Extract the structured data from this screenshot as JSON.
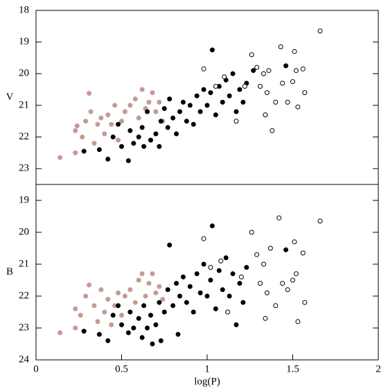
{
  "chart_data": [
    {
      "type": "scatter",
      "ylabel": "V",
      "xlim": [
        0,
        2
      ],
      "ylim": [
        18,
        23.5
      ],
      "invert_y": true,
      "yticks": [
        18,
        19,
        20,
        21,
        22,
        23
      ],
      "series": [
        {
          "color": "#c49a92",
          "filled": true,
          "x": [
            0.14,
            0.23,
            0.23,
            0.24,
            0.27,
            0.29,
            0.31,
            0.32,
            0.34,
            0.36,
            0.38,
            0.4,
            0.42,
            0.44,
            0.46,
            0.48,
            0.5,
            0.52,
            0.55,
            0.58,
            0.6,
            0.62,
            0.64,
            0.66,
            0.68,
            0.7,
            0.72,
            0.74
          ],
          "values": [
            22.65,
            22.5,
            21.8,
            21.65,
            22.0,
            21.5,
            20.62,
            21.2,
            22.2,
            21.6,
            21.4,
            21.9,
            21.3,
            21.6,
            21.0,
            22.1,
            21.5,
            21.2,
            21.0,
            20.8,
            21.4,
            20.5,
            21.1,
            20.9,
            20.6,
            21.2,
            20.9,
            21.5
          ]
        },
        {
          "color": "#000000",
          "filled": true,
          "x": [
            0.28,
            0.37,
            0.42,
            0.45,
            0.48,
            0.5,
            0.54,
            0.55,
            0.57,
            0.6,
            0.62,
            0.63,
            0.65,
            0.67,
            0.7,
            0.72,
            0.73,
            0.75,
            0.77,
            0.78,
            0.8,
            0.82,
            0.84,
            0.86,
            0.88,
            0.9,
            0.92,
            0.94,
            0.96,
            0.98,
            1.0,
            1.02,
            1.03,
            1.05,
            1.07,
            1.09,
            1.11,
            1.13,
            1.15,
            1.17,
            1.19,
            1.21,
            1.23,
            1.27,
            1.46
          ],
          "values": [
            22.45,
            22.4,
            22.7,
            22.0,
            21.6,
            22.3,
            22.75,
            21.8,
            22.2,
            22.0,
            21.7,
            22.3,
            21.2,
            22.1,
            21.9,
            22.3,
            21.5,
            21.1,
            21.7,
            20.8,
            21.4,
            21.9,
            21.2,
            20.9,
            21.5,
            21.0,
            21.6,
            20.7,
            21.2,
            20.5,
            21.0,
            20.6,
            19.25,
            21.3,
            20.4,
            20.9,
            20.2,
            20.7,
            20.0,
            21.2,
            20.5,
            20.9,
            20.3,
            19.9,
            19.75
          ]
        },
        {
          "color": "#000000",
          "filled": false,
          "x": [
            0.98,
            1.05,
            1.1,
            1.17,
            1.22,
            1.26,
            1.29,
            1.31,
            1.33,
            1.34,
            1.35,
            1.36,
            1.38,
            1.4,
            1.43,
            1.44,
            1.47,
            1.5,
            1.51,
            1.52,
            1.53,
            1.56,
            1.57,
            1.66
          ],
          "values": [
            19.85,
            20.4,
            20.1,
            21.5,
            20.4,
            19.4,
            19.8,
            20.4,
            20.0,
            21.3,
            20.6,
            19.9,
            21.8,
            20.9,
            19.15,
            20.3,
            20.9,
            20.25,
            19.3,
            19.9,
            21.05,
            19.85,
            20.6,
            18.65
          ]
        }
      ]
    },
    {
      "type": "scatter",
      "ylabel": "B",
      "xlabel": "log(P)",
      "xlim": [
        0,
        2
      ],
      "ylim": [
        18.5,
        24
      ],
      "invert_y": true,
      "xticks": [
        0,
        0.5,
        1,
        1.5,
        2
      ],
      "yticks": [
        19,
        20,
        21,
        22,
        23,
        24
      ],
      "series": [
        {
          "color": "#c49a92",
          "filled": true,
          "x": [
            0.14,
            0.23,
            0.23,
            0.26,
            0.29,
            0.31,
            0.34,
            0.36,
            0.38,
            0.4,
            0.42,
            0.44,
            0.46,
            0.48,
            0.5,
            0.52,
            0.55,
            0.58,
            0.6,
            0.62,
            0.64,
            0.66,
            0.68,
            0.7,
            0.72,
            0.74
          ],
          "values": [
            23.15,
            22.4,
            23.0,
            22.6,
            22.0,
            21.65,
            22.3,
            22.8,
            21.8,
            22.5,
            22.1,
            22.9,
            22.3,
            21.9,
            22.6,
            22.0,
            21.8,
            22.2,
            21.5,
            21.3,
            22.0,
            21.6,
            21.3,
            21.9,
            21.7,
            22.1
          ]
        },
        {
          "color": "#000000",
          "filled": true,
          "x": [
            0.28,
            0.37,
            0.42,
            0.45,
            0.48,
            0.5,
            0.54,
            0.55,
            0.57,
            0.6,
            0.62,
            0.63,
            0.65,
            0.67,
            0.68,
            0.7,
            0.72,
            0.73,
            0.75,
            0.77,
            0.78,
            0.8,
            0.82,
            0.83,
            0.84,
            0.86,
            0.88,
            0.9,
            0.92,
            0.94,
            0.96,
            0.98,
            1.0,
            1.02,
            1.03,
            1.05,
            1.07,
            1.09,
            1.11,
            1.13,
            1.15,
            1.17,
            1.19,
            1.21,
            1.23,
            1.46
          ],
          "values": [
            23.1,
            23.2,
            23.4,
            22.6,
            22.3,
            22.9,
            23.15,
            22.5,
            23.0,
            22.7,
            23.3,
            22.3,
            23.0,
            22.6,
            23.5,
            22.9,
            22.2,
            23.4,
            22.5,
            21.8,
            20.4,
            22.3,
            21.6,
            23.2,
            22.0,
            21.4,
            22.2,
            21.7,
            22.5,
            21.3,
            21.9,
            21.0,
            22.0,
            21.5,
            19.8,
            22.4,
            21.2,
            21.8,
            20.8,
            22.0,
            21.3,
            22.9,
            21.6,
            22.2,
            21.1,
            20.55
          ]
        },
        {
          "color": "#000000",
          "filled": false,
          "x": [
            0.98,
            1.02,
            1.08,
            1.12,
            1.2,
            1.26,
            1.29,
            1.31,
            1.33,
            1.34,
            1.35,
            1.37,
            1.4,
            1.42,
            1.44,
            1.47,
            1.5,
            1.51,
            1.52,
            1.53,
            1.56,
            1.57,
            1.66
          ],
          "values": [
            20.2,
            21.1,
            20.9,
            22.5,
            21.4,
            20.0,
            20.7,
            21.6,
            21.0,
            22.7,
            21.9,
            20.5,
            22.3,
            19.55,
            21.6,
            21.8,
            21.5,
            20.3,
            21.3,
            22.8,
            20.65,
            22.2,
            19.65
          ]
        }
      ]
    }
  ]
}
